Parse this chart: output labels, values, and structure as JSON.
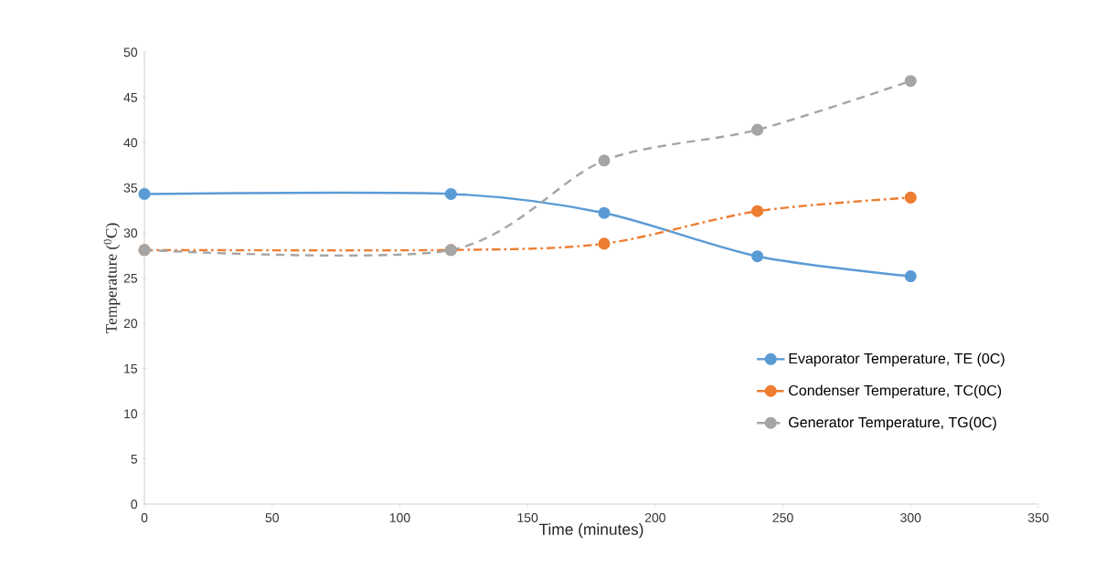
{
  "chart_data": {
    "type": "line",
    "xlabel": "Time (minutes)",
    "ylabel": "Temperature ($^{0}$C)",
    "x": [
      0,
      120,
      180,
      240,
      300
    ],
    "series": [
      {
        "name": "Evaporator Temperature, TE (0C)",
        "color": "#5b9bd5",
        "values": [
          34.3,
          34.3,
          32.2,
          27.4,
          25.2
        ],
        "line_style": "solid"
      },
      {
        "name": "Condenser Temperature, TC(0C)",
        "color": "#ed7d31",
        "values": [
          28.1,
          28.1,
          28.8,
          32.4,
          33.9
        ],
        "line_style": "dashdot"
      },
      {
        "name": "Generator Temperature, TG(0C)",
        "color": "#a5a5a5",
        "values": [
          28.1,
          28.1,
          38.0,
          41.4,
          46.8
        ],
        "line_style": "dashed"
      }
    ],
    "xlim": [
      0,
      350
    ],
    "xticks": [
      0,
      50,
      100,
      150,
      200,
      250,
      300,
      350
    ],
    "ylim": [
      0,
      50
    ],
    "yticks": [
      0,
      5,
      10,
      15,
      20,
      25,
      30,
      35,
      40,
      45,
      50
    ],
    "grid": false,
    "legend": "right",
    "marker": "circle"
  }
}
